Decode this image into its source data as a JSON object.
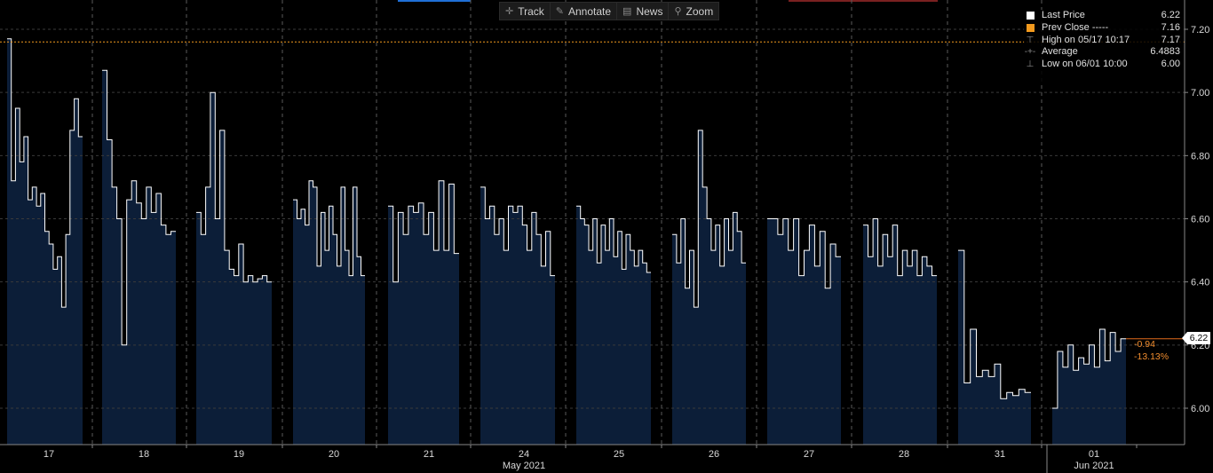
{
  "toolbar": {
    "track": "Track",
    "annotate": "Annotate",
    "news": "News",
    "zoom": "Zoom"
  },
  "legend": {
    "last_price_label": "Last Price",
    "last_price_value": "6.22",
    "prev_close_label": "Prev Close -----",
    "prev_close_value": "7.16",
    "high_label": "High on 05/17 10:17",
    "high_value": "7.17",
    "average_label": "Average",
    "average_value": "6.4883",
    "low_label": "Low on 06/01 10:00",
    "low_value": "6.00"
  },
  "price_tag": "6.22",
  "change_abs": "-0.94",
  "change_pct": "-13.13%",
  "colors": {
    "last_price": "#ffffff",
    "prev_close": "#f39a1e",
    "area_fill": "#0c1e38",
    "change": "#f08c2e"
  },
  "chart_data": {
    "type": "area",
    "y_axis": {
      "range": [
        5.9,
        7.28
      ],
      "ticks": [
        "6.00",
        "6.20",
        "6.40",
        "6.60",
        "6.80",
        "7.00",
        "7.20"
      ],
      "position": "right"
    },
    "x_axis": {
      "day_labels": [
        "17",
        "18",
        "19",
        "20",
        "21",
        "24",
        "25",
        "26",
        "27",
        "28",
        "31",
        "01"
      ],
      "month_labels": [
        {
          "label": "May 2021",
          "under_day": "24"
        },
        {
          "label": "Jun 2021",
          "under_day": "01"
        }
      ]
    },
    "prev_close": 7.16,
    "last_price": 6.22,
    "grid": "on",
    "legend_position": "top-right",
    "series": [
      {
        "name": "Last Price",
        "day": "17",
        "values": [
          7.17,
          6.72,
          6.95,
          6.78,
          6.86,
          6.66,
          6.7,
          6.64,
          6.68,
          6.56,
          6.52,
          6.44,
          6.48,
          6.32,
          6.55,
          6.88,
          6.98,
          6.86
        ]
      },
      {
        "name": "Last Price",
        "day": "18",
        "values": [
          7.07,
          6.85,
          6.7,
          6.6,
          6.2,
          6.66,
          6.72,
          6.65,
          6.6,
          6.7,
          6.62,
          6.68,
          6.58,
          6.55,
          6.56
        ]
      },
      {
        "name": "Last Price",
        "day": "19",
        "values": [
          6.62,
          6.55,
          6.7,
          7.0,
          6.6,
          6.88,
          6.5,
          6.44,
          6.42,
          6.52,
          6.4,
          6.42,
          6.4,
          6.41,
          6.42,
          6.4
        ]
      },
      {
        "name": "Last Price",
        "day": "20",
        "values": [
          6.66,
          6.6,
          6.63,
          6.58,
          6.72,
          6.7,
          6.45,
          6.62,
          6.5,
          6.64,
          6.55,
          6.45,
          6.7,
          6.5,
          6.42,
          6.7,
          6.48,
          6.42
        ]
      },
      {
        "name": "Last Price",
        "day": "21",
        "values": [
          6.64,
          6.4,
          6.62,
          6.55,
          6.64,
          6.62,
          6.65,
          6.55,
          6.62,
          6.5,
          6.72,
          6.5,
          6.71,
          6.49
        ]
      },
      {
        "name": "Last Price",
        "day": "24",
        "values": [
          6.7,
          6.6,
          6.64,
          6.55,
          6.6,
          6.5,
          6.64,
          6.62,
          6.64,
          6.58,
          6.5,
          6.62,
          6.55,
          6.45,
          6.56,
          6.42
        ]
      },
      {
        "name": "Last Price",
        "day": "25",
        "values": [
          6.64,
          6.6,
          6.58,
          6.5,
          6.6,
          6.46,
          6.58,
          6.5,
          6.6,
          6.48,
          6.56,
          6.44,
          6.55,
          6.5,
          6.45,
          6.5,
          6.46,
          6.43
        ]
      },
      {
        "name": "Last Price",
        "day": "26",
        "values": [
          6.55,
          6.46,
          6.6,
          6.38,
          6.5,
          6.32,
          6.88,
          6.7,
          6.6,
          6.5,
          6.58,
          6.45,
          6.6,
          6.5,
          6.62,
          6.56,
          6.46
        ]
      },
      {
        "name": "Last Price",
        "day": "27",
        "values": [
          6.6,
          6.6,
          6.55,
          6.6,
          6.5,
          6.6,
          6.42,
          6.5,
          6.58,
          6.45,
          6.56,
          6.38,
          6.52,
          6.48
        ]
      },
      {
        "name": "Last Price",
        "day": "28",
        "values": [
          6.58,
          6.48,
          6.6,
          6.45,
          6.55,
          6.48,
          6.58,
          6.42,
          6.5,
          6.45,
          6.5,
          6.42,
          6.48,
          6.45,
          6.42
        ]
      },
      {
        "name": "Last Price",
        "day": "31",
        "values": [
          6.5,
          6.08,
          6.25,
          6.1,
          6.12,
          6.1,
          6.14,
          6.03,
          6.05,
          6.04,
          6.06,
          6.05
        ]
      },
      {
        "name": "Last Price",
        "day": "01",
        "values": [
          6.0,
          6.18,
          6.13,
          6.2,
          6.12,
          6.16,
          6.14,
          6.2,
          6.13,
          6.25,
          6.15,
          6.24,
          6.18,
          6.22
        ]
      }
    ]
  }
}
